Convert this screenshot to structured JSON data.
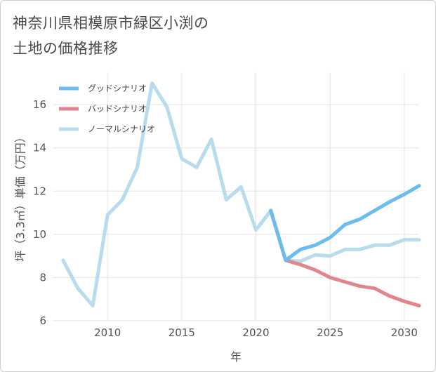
{
  "title_lines": [
    "神奈川県相模原市緑区小渕の",
    "土地の価格推移"
  ],
  "chart_data": {
    "type": "line",
    "xlabel": "年",
    "ylabel": "坪（3.3㎡）単価（万円）",
    "xlim": [
      2006.3,
      2031
    ],
    "ylim": [
      6,
      17.5
    ],
    "xticks": [
      2010,
      2015,
      2020,
      2025,
      2030
    ],
    "yticks": [
      6,
      8,
      10,
      12,
      14,
      16
    ],
    "x_tick_labels": [
      "2010",
      "2015",
      "2020",
      "2025",
      "2030"
    ],
    "y_tick_labels": [
      "6",
      "8",
      "10",
      "12",
      "14",
      "16"
    ],
    "grid": true,
    "legend_position": "top-left",
    "series": [
      {
        "name": "グッドシナリオ",
        "color": "#6bbdf0",
        "x": [
          2021,
          2022,
          2023,
          2024,
          2025,
          2026,
          2027,
          2028,
          2029,
          2030,
          2031
        ],
        "y": [
          11.1,
          8.8,
          9.3,
          9.5,
          9.85,
          10.45,
          10.7,
          11.1,
          11.5,
          11.85,
          12.25
        ]
      },
      {
        "name": "バッドシナリオ",
        "color": "#e0868f",
        "x": [
          2021,
          2022,
          2023,
          2024,
          2025,
          2026,
          2027,
          2028,
          2029,
          2030,
          2031
        ],
        "y": [
          11.1,
          8.8,
          8.6,
          8.35,
          8.0,
          7.8,
          7.6,
          7.5,
          7.15,
          6.9,
          6.7
        ]
      },
      {
        "name": "ノーマルシナリオ",
        "color": "#b7dcec",
        "x": [
          2007,
          2008,
          2009,
          2010,
          2011,
          2012,
          2013,
          2014,
          2015,
          2016,
          2017,
          2018,
          2019,
          2020,
          2021,
          2022,
          2023,
          2024,
          2025,
          2026,
          2027,
          2028,
          2029,
          2030,
          2031
        ],
        "y": [
          8.8,
          7.5,
          6.7,
          10.9,
          11.6,
          13.1,
          17.0,
          15.9,
          13.5,
          13.1,
          14.4,
          11.6,
          12.2,
          10.2,
          11.1,
          8.8,
          8.75,
          9.05,
          9.0,
          9.3,
          9.3,
          9.5,
          9.5,
          9.75,
          9.75
        ]
      }
    ]
  }
}
